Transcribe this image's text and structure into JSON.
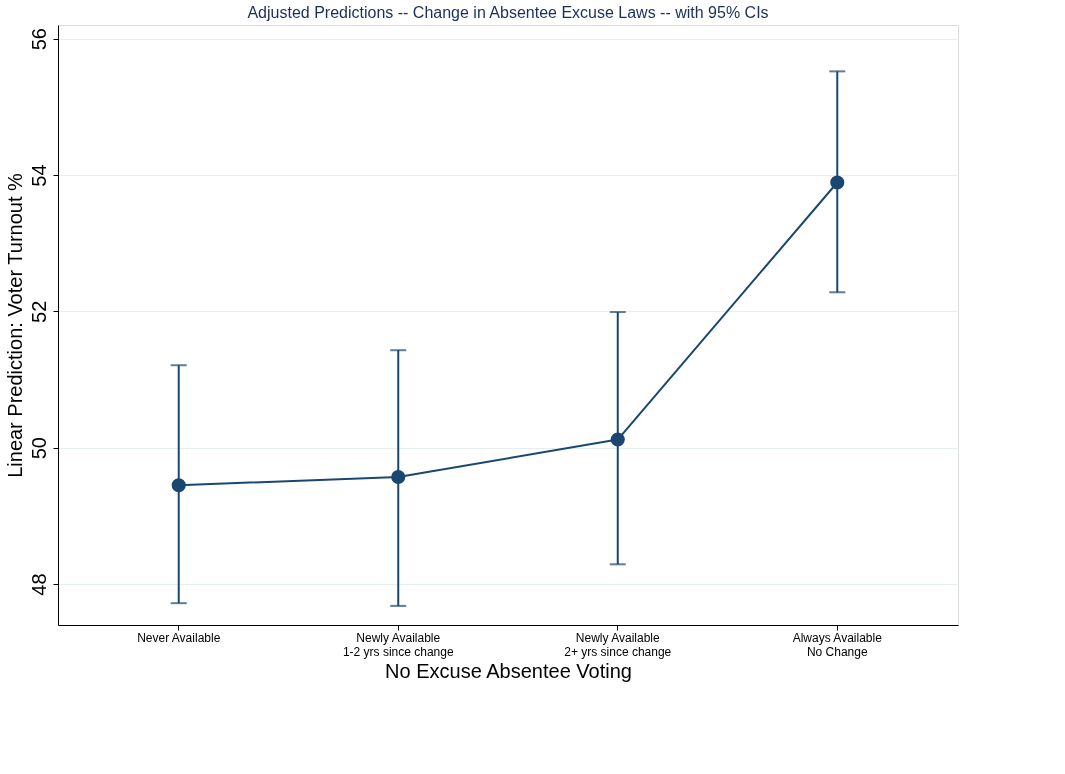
{
  "chart_data": {
    "type": "line",
    "title": "Adjusted Predictions -- Change in Absentee Excuse Laws -- with 95% CIs",
    "xlabel": "No Excuse Absentee Voting",
    "ylabel": "Linear Prediction: Voter Turnout %",
    "categories": [
      "Never Available",
      "Newly Available\n1-2 yrs since change",
      "Newly Available\n2+ yrs since change",
      "Always Available\nNo Change"
    ],
    "series": [
      {
        "color": "#1a476f",
        "values": [
          49.45,
          49.57,
          50.12,
          53.89
        ],
        "errors": [
          [
            47.72,
            51.21
          ],
          [
            47.68,
            51.43
          ],
          [
            48.29,
            51.99
          ],
          [
            52.28,
            55.52
          ]
        ]
      }
    ],
    "ylim": [
      47.4,
      56.2
    ],
    "yticks": [
      48,
      50,
      52,
      54,
      56
    ],
    "grid": "y",
    "marker": "circle",
    "line_style": "solid"
  }
}
